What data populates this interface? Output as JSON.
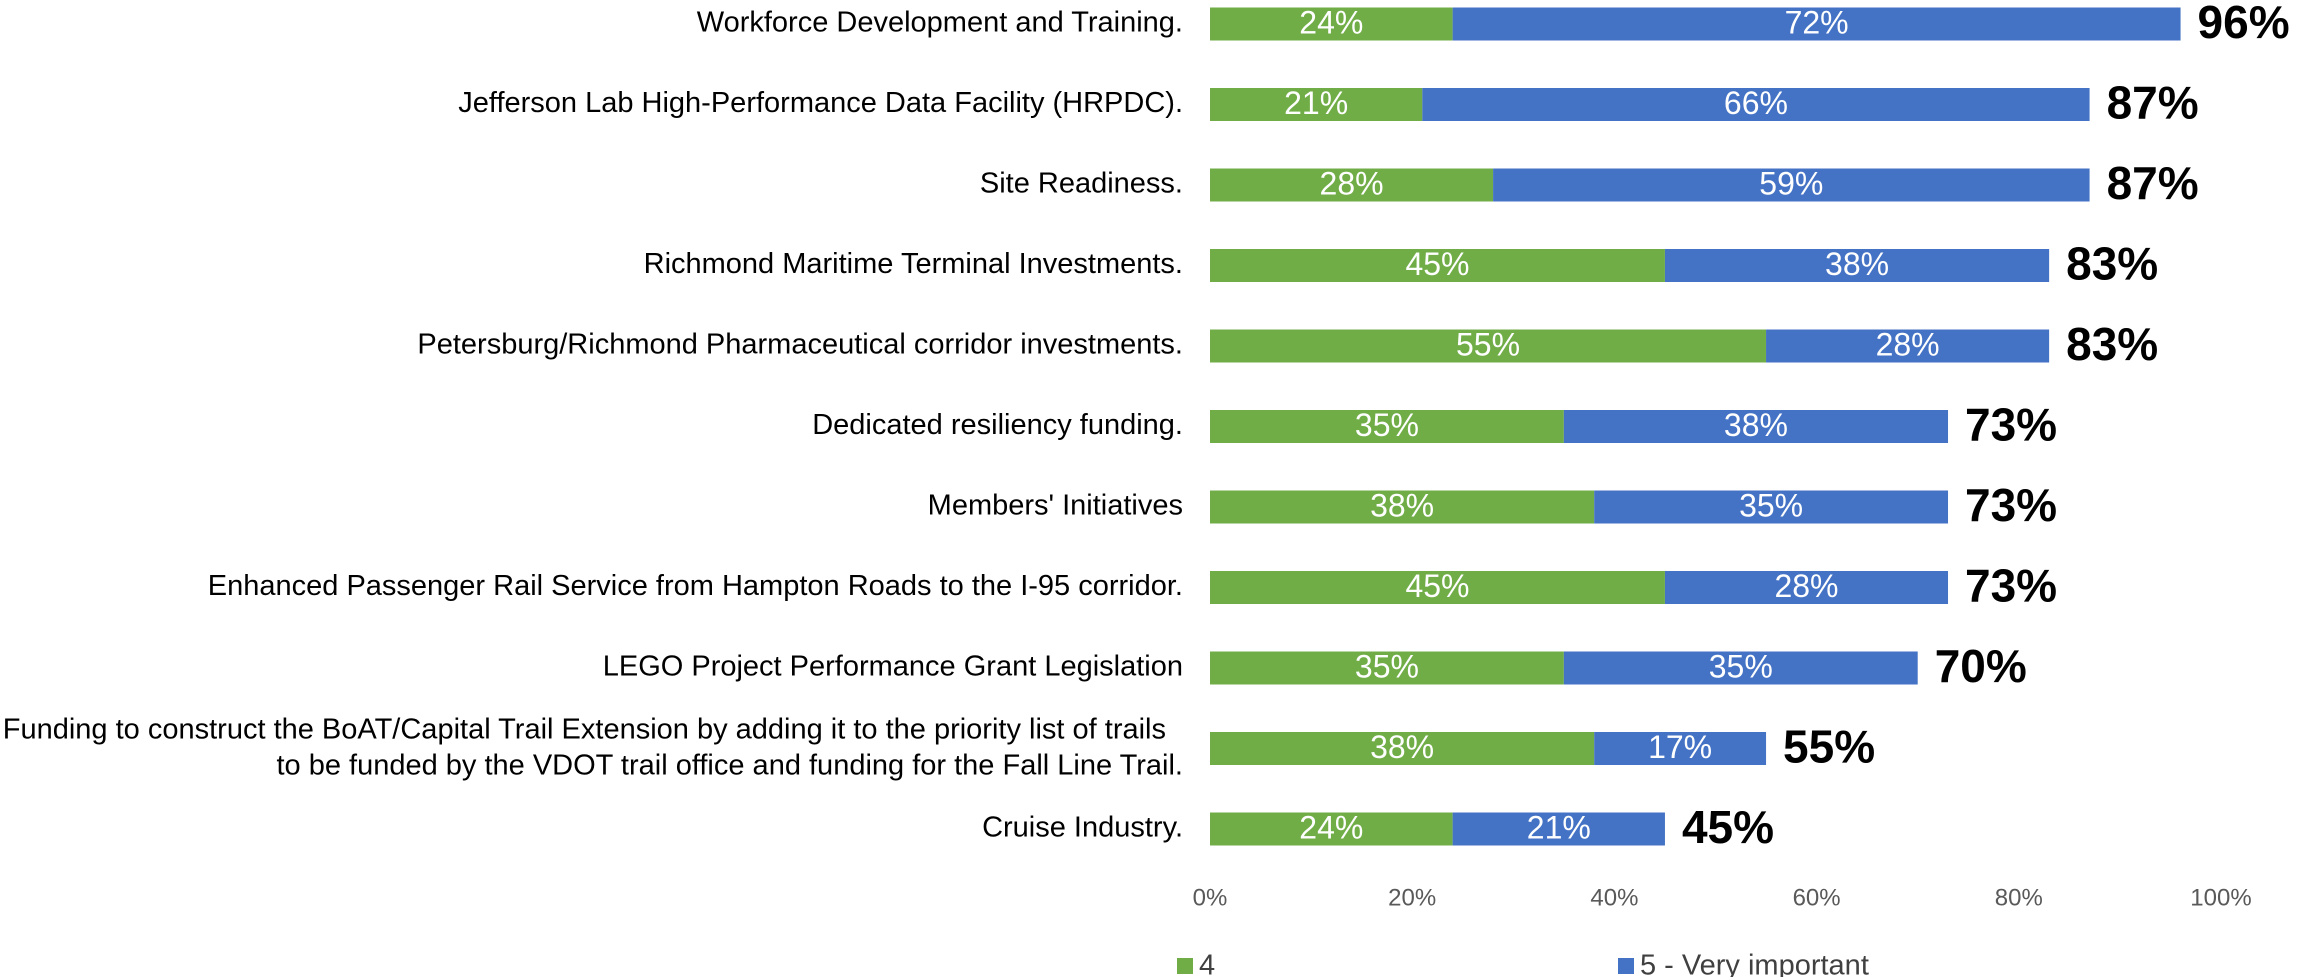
{
  "chart_data": {
    "type": "stacked-bar-horizontal",
    "categories": [
      "Workforce Development and Training.",
      "Jefferson Lab High-Performance Data Facility (HRPDC).",
      "Site Readiness.",
      "Richmond Maritime Terminal Investments.",
      "Petersburg/Richmond Pharmaceutical corridor investments.",
      "Dedicated resiliency funding.",
      "Members' Initiatives",
      "Enhanced Passenger Rail Service from Hampton Roads to the I-95 corridor.",
      "LEGO Project Performance Grant Legislation",
      "Funding to construct the BoAT/Capital Trail Extension by adding it to the priority list of trails to be funded by the VDOT trail office and funding for the Fall Line Trail.",
      "Cruise Industry."
    ],
    "series": [
      {
        "name": "4",
        "color": "#70ad47",
        "values": [
          24,
          21,
          28,
          45,
          55,
          35,
          38,
          45,
          35,
          38,
          24
        ],
        "value_labels": [
          "24%",
          "21%",
          "28%",
          "45%",
          "55%",
          "35%",
          "38%",
          "45%",
          "35%",
          "38%",
          "24%"
        ]
      },
      {
        "name": "5 - Very important",
        "color": "#4472c4",
        "values": [
          72,
          66,
          59,
          38,
          28,
          38,
          35,
          28,
          35,
          17,
          21
        ],
        "value_labels": [
          "72%",
          "66%",
          "59%",
          "38%",
          "28%",
          "38%",
          "35%",
          "28%",
          "35%",
          "17%",
          "21%"
        ]
      }
    ],
    "totals": [
      96,
      87,
      87,
      83,
      83,
      73,
      73,
      73,
      70,
      55,
      45
    ],
    "total_labels": [
      "96%",
      "87%",
      "87%",
      "83%",
      "83%",
      "73%",
      "73%",
      "73%",
      "70%",
      "55%",
      "45%"
    ],
    "xlim": [
      0,
      100
    ],
    "xticks": [
      {
        "value": 0,
        "label": "0%"
      },
      {
        "value": 20,
        "label": "20%"
      },
      {
        "value": 40,
        "label": "40%"
      },
      {
        "value": 60,
        "label": "60%"
      },
      {
        "value": 80,
        "label": "80%"
      },
      {
        "value": 100,
        "label": "100%"
      }
    ],
    "legend": "bottom"
  }
}
